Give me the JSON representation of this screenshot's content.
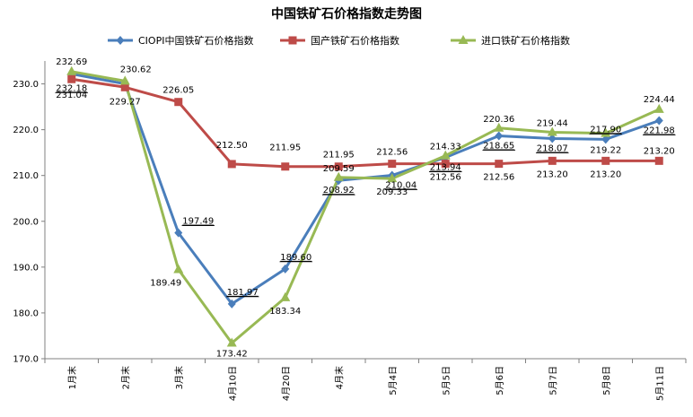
{
  "chart_data": {
    "type": "line",
    "title": "中国铁矿石价格指数走势图",
    "xlabel": "",
    "ylabel": "",
    "ylim": [
      170,
      235
    ],
    "yticks": [
      "170.0",
      "180.0",
      "190.0",
      "200.0",
      "210.0",
      "220.0",
      "230.0"
    ],
    "categories": [
      "1月末",
      "2月末",
      "3月末",
      "4月10日",
      "4月20日",
      "4月末",
      "5月4日",
      "5月5日",
      "5月6日",
      "5月7日",
      "5月8日",
      "5月11日"
    ],
    "legend_position": "top",
    "series": [
      {
        "name": "CIOPI中国铁矿石价格指数",
        "color": "#4a7ebb",
        "marker": "diamond",
        "values": [
          232.18,
          230.0,
          197.49,
          181.97,
          189.6,
          208.92,
          210.04,
          213.94,
          218.65,
          218.07,
          217.9,
          221.98
        ],
        "labels": [
          "232.18",
          "",
          "197.49",
          "181.97",
          "189.60",
          "208.92",
          "210.04",
          "213.94",
          "218.65",
          "218.07",
          "217.90",
          "221.98"
        ]
      },
      {
        "name": "国产铁矿石价格指数",
        "color": "#be4b48",
        "marker": "square",
        "values": [
          231.04,
          229.27,
          226.05,
          212.5,
          211.95,
          211.95,
          212.56,
          212.56,
          212.56,
          213.2,
          213.2,
          213.2
        ],
        "labels": [
          "231.04",
          "229.27",
          "226.05",
          "212.50",
          "211.95",
          "211.95",
          "212.56",
          "212.56",
          "212.56",
          "213.20",
          "213.20",
          "213.20"
        ]
      },
      {
        "name": "进口铁矿石价格指数",
        "color": "#98b954",
        "marker": "triangle",
        "values": [
          232.69,
          230.62,
          189.49,
          173.42,
          183.34,
          209.59,
          209.33,
          214.33,
          220.36,
          219.44,
          219.22,
          224.44
        ],
        "labels": [
          "232.69",
          "230.62",
          "189.49",
          "173.42",
          "183.34",
          "209.59",
          "209.33",
          "214.33",
          "220.36",
          "219.44",
          "219.22",
          "224.44"
        ]
      }
    ]
  }
}
